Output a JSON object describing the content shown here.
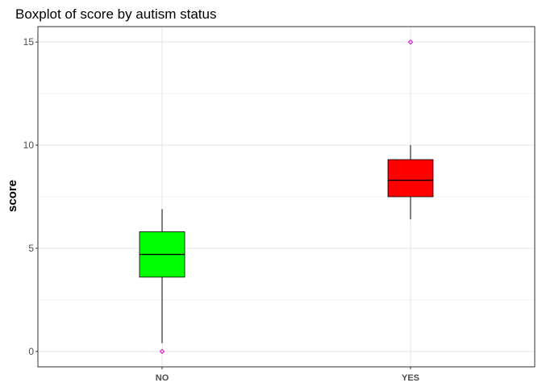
{
  "chart_data": {
    "type": "boxplot",
    "title": "Boxplot of score by autism status",
    "xlabel": "",
    "ylabel": "score",
    "ylim": [
      -0.75,
      15.75
    ],
    "yticks": [
      0,
      5,
      10,
      15
    ],
    "ytick_labels": [
      "0",
      "5",
      "10",
      "15"
    ],
    "grid": true,
    "legend": "none",
    "outlier_color": "#cc00cc",
    "categories": [
      "NO",
      "YES"
    ],
    "boxes": [
      {
        "category": "NO",
        "whisker_low": 0.4,
        "q1": 3.6,
        "median": 4.7,
        "q3": 5.8,
        "whisker_high": 6.9,
        "outliers": [
          0
        ],
        "fill": "#00ff00"
      },
      {
        "category": "YES",
        "whisker_low": 6.4,
        "q1": 7.5,
        "median": 8.3,
        "q3": 9.3,
        "whisker_high": 10.0,
        "outliers": [
          15
        ],
        "fill": "#ff0000"
      }
    ]
  }
}
